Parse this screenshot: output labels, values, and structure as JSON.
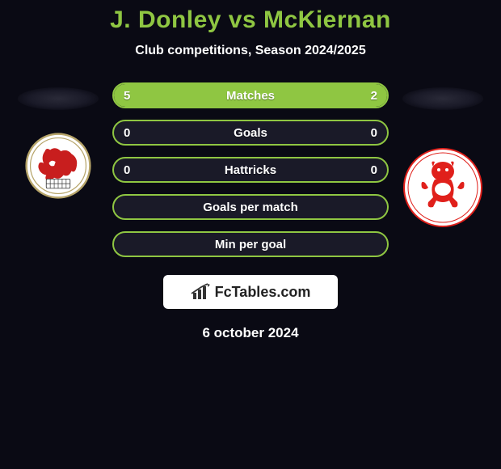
{
  "title": "J. Donley vs McKiernan",
  "subtitle": "Club competitions, Season 2024/2025",
  "colors": {
    "accent": "#8fc642",
    "background": "#0a0a14",
    "bar_bg": "#1a1a28",
    "text": "#ffffff",
    "crest_left_ring": "#b7a56a",
    "crest_left_bg": "#ffffff",
    "crest_left_dragon": "#c81e1e",
    "crest_right_bg": "#ffffff",
    "crest_right_imp": "#e0201b"
  },
  "bars": [
    {
      "label": "Matches",
      "left": "5",
      "right": "2",
      "left_pct": 71.5,
      "right_pct": 28.5
    },
    {
      "label": "Goals",
      "left": "0",
      "right": "0",
      "left_pct": 0,
      "right_pct": 0
    },
    {
      "label": "Hattricks",
      "left": "0",
      "right": "0",
      "left_pct": 0,
      "right_pct": 0
    },
    {
      "label": "Goals per match",
      "left": "",
      "right": "",
      "left_pct": 0,
      "right_pct": 0
    },
    {
      "label": "Min per goal",
      "left": "",
      "right": "",
      "left_pct": 0,
      "right_pct": 0
    }
  ],
  "logo": {
    "brand": "FcTables.com"
  },
  "date": "6 october 2024"
}
